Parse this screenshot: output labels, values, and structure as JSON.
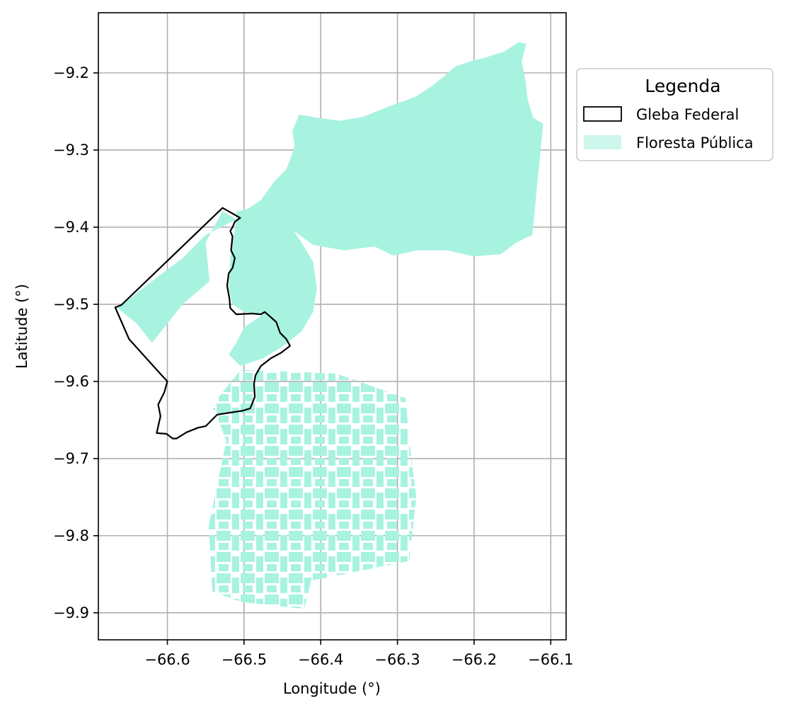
{
  "chart_data": {
    "type": "map",
    "x_axis": {
      "label": "Longitude (°)",
      "range": [
        -66.69,
        -66.08
      ],
      "ticks": [
        -66.6,
        -66.5,
        -66.4,
        -66.3,
        -66.2,
        -66.1
      ],
      "tick_labels": [
        "−66.6",
        "−66.5",
        "−66.4",
        "−66.3",
        "−66.2",
        "−66.1"
      ]
    },
    "y_axis": {
      "label": "Latitude (°)",
      "range": [
        -9.935,
        -9.122
      ],
      "ticks": [
        -9.2,
        -9.3,
        -9.4,
        -9.5,
        -9.6,
        -9.7,
        -9.8,
        -9.9
      ],
      "tick_labels": [
        "−9.2",
        "−9.3",
        "−9.4",
        "−9.5",
        "−9.6",
        "−9.7",
        "−9.8",
        "−9.9"
      ]
    },
    "grid": true,
    "legend": {
      "title": "Legenda",
      "placement": "outside-top-right",
      "entries": [
        {
          "label": "Gleba Federal",
          "style": "outline",
          "color": "#000000"
        },
        {
          "label": "Floresta Pública",
          "style": "fill",
          "color": "#a8f3e0"
        }
      ]
    },
    "layers": [
      {
        "name": "Gleba Federal",
        "type": "polygon-outline",
        "color": "#000000",
        "coordinates": [
          [
            -66.528,
            -9.375
          ],
          [
            -66.505,
            -9.388
          ],
          [
            -66.512,
            -9.393
          ],
          [
            -66.515,
            -9.4
          ],
          [
            -66.518,
            -9.405
          ],
          [
            -66.515,
            -9.412
          ],
          [
            -66.517,
            -9.43
          ],
          [
            -66.512,
            -9.44
          ],
          [
            -66.515,
            -9.453
          ],
          [
            -66.52,
            -9.46
          ],
          [
            -66.522,
            -9.476
          ],
          [
            -66.519,
            -9.493
          ],
          [
            -66.518,
            -9.505
          ],
          [
            -66.51,
            -9.513
          ],
          [
            -66.49,
            -9.512
          ],
          [
            -66.478,
            -9.513
          ],
          [
            -66.473,
            -9.51
          ],
          [
            -66.467,
            -9.515
          ],
          [
            -66.458,
            -9.523
          ],
          [
            -66.453,
            -9.537
          ],
          [
            -66.445,
            -9.545
          ],
          [
            -66.44,
            -9.554
          ],
          [
            -66.452,
            -9.563
          ],
          [
            -66.465,
            -9.57
          ],
          [
            -66.478,
            -9.58
          ],
          [
            -66.485,
            -9.592
          ],
          [
            -66.487,
            -9.603
          ],
          [
            -66.486,
            -9.62
          ],
          [
            -66.492,
            -9.635
          ],
          [
            -66.502,
            -9.638
          ],
          [
            -66.515,
            -9.64
          ],
          [
            -66.535,
            -9.643
          ],
          [
            -66.55,
            -9.658
          ],
          [
            -66.56,
            -9.66
          ],
          [
            -66.575,
            -9.666
          ],
          [
            -66.588,
            -9.674
          ],
          [
            -66.593,
            -9.674
          ],
          [
            -66.601,
            -9.668
          ],
          [
            -66.614,
            -9.667
          ],
          [
            -66.609,
            -9.645
          ],
          [
            -66.612,
            -9.63
          ],
          [
            -66.604,
            -9.614
          ],
          [
            -66.6,
            -9.6
          ],
          [
            -66.612,
            -9.587
          ],
          [
            -66.65,
            -9.545
          ],
          [
            -66.668,
            -9.504
          ],
          [
            -66.66,
            -9.501
          ],
          [
            -66.528,
            -9.375
          ]
        ]
      },
      {
        "name": "Floresta Pública",
        "type": "polygon-fill",
        "color": "#a8f3e0",
        "regions": [
          {
            "part": "northern block",
            "coordinates": [
              [
                -66.51,
                -9.38
              ],
              [
                -66.495,
                -9.376
              ],
              [
                -66.478,
                -9.365
              ],
              [
                -66.46,
                -9.34
              ],
              [
                -66.445,
                -9.325
              ],
              [
                -66.44,
                -9.312
              ],
              [
                -66.434,
                -9.295
              ],
              [
                -66.437,
                -9.275
              ],
              [
                -66.428,
                -9.254
              ],
              [
                -66.405,
                -9.258
              ],
              [
                -66.375,
                -9.262
              ],
              [
                -66.345,
                -9.257
              ],
              [
                -66.31,
                -9.243
              ],
              [
                -66.29,
                -9.236
              ],
              [
                -66.275,
                -9.23
              ],
              [
                -66.255,
                -9.217
              ],
              [
                -66.24,
                -9.205
              ],
              [
                -66.225,
                -9.192
              ],
              [
                -66.205,
                -9.185
              ],
              [
                -66.185,
                -9.18
              ],
              [
                -66.16,
                -9.172
              ],
              [
                -66.142,
                -9.16
              ],
              [
                -66.132,
                -9.162
              ],
              [
                -66.138,
                -9.185
              ],
              [
                -66.133,
                -9.21
              ],
              [
                -66.13,
                -9.235
              ],
              [
                -66.123,
                -9.258
              ],
              [
                -66.11,
                -9.266
              ],
              [
                -66.124,
                -9.41
              ],
              [
                -66.145,
                -9.42
              ],
              [
                -66.165,
                -9.435
              ],
              [
                -66.2,
                -9.438
              ],
              [
                -66.235,
                -9.43
              ],
              [
                -66.275,
                -9.43
              ],
              [
                -66.305,
                -9.437
              ],
              [
                -66.33,
                -9.425
              ],
              [
                -66.37,
                -9.43
              ],
              [
                -66.41,
                -9.423
              ],
              [
                -66.435,
                -9.405
              ],
              [
                -66.425,
                -9.42
              ],
              [
                -66.41,
                -9.445
              ],
              [
                -66.405,
                -9.48
              ],
              [
                -66.41,
                -9.51
              ],
              [
                -66.425,
                -9.535
              ],
              [
                -66.45,
                -9.555
              ],
              [
                -66.475,
                -9.57
              ],
              [
                -66.505,
                -9.58
              ],
              [
                -66.52,
                -9.565
              ],
              [
                -66.51,
                -9.55
              ],
              [
                -66.5,
                -9.53
              ],
              [
                -66.475,
                -9.513
              ],
              [
                -66.5,
                -9.51
              ],
              [
                -66.515,
                -9.5
              ],
              [
                -66.52,
                -9.48
              ],
              [
                -66.518,
                -9.44
              ],
              [
                -66.51,
                -9.39
              ]
            ]
          },
          {
            "part": "western patches (inside gleba)",
            "coordinates": [
              [
                -66.51,
                -9.39
              ],
              [
                -66.528,
                -9.379
              ],
              [
                -66.55,
                -9.42
              ],
              [
                -66.545,
                -9.47
              ],
              [
                -66.58,
                -9.5
              ],
              [
                -66.62,
                -9.55
              ],
              [
                -66.64,
                -9.525
              ],
              [
                -66.665,
                -9.505
              ],
              [
                -66.62,
                -9.47
              ],
              [
                -66.58,
                -9.44
              ],
              [
                -66.55,
                -9.41
              ]
            ]
          },
          {
            "part": "southern fragmented block",
            "bbox_lonlat": [
              -66.56,
              -9.585,
              -66.28,
              -9.895
            ]
          }
        ]
      }
    ]
  }
}
